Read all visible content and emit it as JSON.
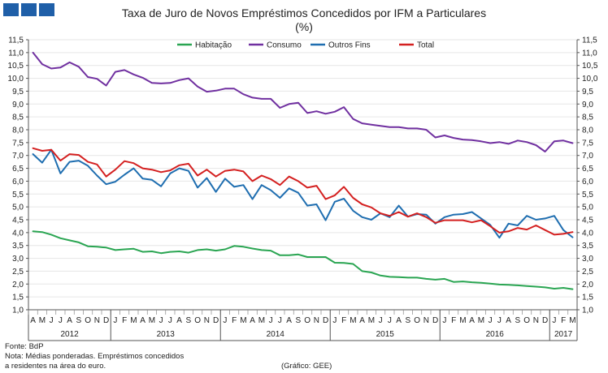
{
  "logo": {
    "color": "#1f5fa8"
  },
  "chart_data": {
    "type": "line",
    "title": "Taxa de Juro de Novos Empréstimos Concedidos por IFM a Particulares",
    "subtitle": "(%)",
    "xlabel": "",
    "ylabel": "",
    "ylim": [
      1.0,
      11.5
    ],
    "y_ticks": [
      "1,0",
      "1,5",
      "2,0",
      "2,5",
      "3,0",
      "3,5",
      "4,0",
      "4,5",
      "5,0",
      "5,5",
      "6,0",
      "6,5",
      "7,0",
      "7,5",
      "8,0",
      "8,5",
      "9,0",
      "9,5",
      "10,0",
      "10,5",
      "11,0",
      "11,5"
    ],
    "months": [
      "A",
      "M",
      "J",
      "J",
      "A",
      "S",
      "O",
      "N",
      "D",
      "J",
      "F",
      "M",
      "A",
      "M",
      "J",
      "J",
      "A",
      "S",
      "O",
      "N",
      "D",
      "J",
      "F",
      "M",
      "A",
      "M",
      "J",
      "J",
      "A",
      "S",
      "O",
      "N",
      "D",
      "J",
      "F",
      "M",
      "A",
      "M",
      "J",
      "J",
      "A",
      "S",
      "O",
      "N",
      "D",
      "J",
      "F",
      "M",
      "A",
      "M",
      "J",
      "J",
      "A",
      "S",
      "O",
      "N",
      "D",
      "J",
      "F",
      "M"
    ],
    "years": [
      {
        "label": "2012",
        "start": 0,
        "end": 9
      },
      {
        "label": "2013",
        "start": 9,
        "end": 21
      },
      {
        "label": "2014",
        "start": 21,
        "end": 33
      },
      {
        "label": "2015",
        "start": 33,
        "end": 45
      },
      {
        "label": "2016",
        "start": 45,
        "end": 57
      },
      {
        "label": "2017",
        "start": 57,
        "end": 60
      }
    ],
    "legend_position": "top",
    "series": [
      {
        "name": "Habitação",
        "color": "#2aa552",
        "values": [
          4.05,
          4.02,
          3.92,
          3.78,
          3.7,
          3.62,
          3.47,
          3.45,
          3.42,
          3.32,
          3.35,
          3.37,
          3.25,
          3.27,
          3.2,
          3.25,
          3.27,
          3.22,
          3.32,
          3.35,
          3.3,
          3.35,
          3.48,
          3.45,
          3.38,
          3.32,
          3.3,
          3.12,
          3.12,
          3.15,
          3.05,
          3.05,
          3.05,
          2.83,
          2.82,
          2.78,
          2.5,
          2.45,
          2.33,
          2.28,
          2.27,
          2.25,
          2.25,
          2.2,
          2.17,
          2.2,
          2.08,
          2.1,
          2.07,
          2.05,
          2.02,
          1.98,
          1.97,
          1.95,
          1.92,
          1.9,
          1.87,
          1.82,
          1.85,
          1.8
        ]
      },
      {
        "name": "Consumo",
        "color": "#7030a0",
        "values": [
          11.0,
          10.55,
          10.38,
          10.42,
          10.62,
          10.45,
          10.05,
          9.98,
          9.72,
          10.25,
          10.32,
          10.15,
          10.02,
          9.82,
          9.8,
          9.82,
          9.93,
          10.0,
          9.68,
          9.48,
          9.52,
          9.6,
          9.6,
          9.38,
          9.25,
          9.2,
          9.2,
          8.85,
          9.0,
          9.05,
          8.65,
          8.72,
          8.62,
          8.7,
          8.88,
          8.42,
          8.25,
          8.2,
          8.15,
          8.1,
          8.1,
          8.05,
          8.05,
          8.0,
          7.7,
          7.78,
          7.68,
          7.62,
          7.6,
          7.55,
          7.48,
          7.52,
          7.45,
          7.58,
          7.52,
          7.4,
          7.15,
          7.55,
          7.58,
          7.48
        ]
      },
      {
        "name": "Outros Fins",
        "color": "#1f6eb0",
        "values": [
          7.05,
          6.72,
          7.22,
          6.3,
          6.75,
          6.8,
          6.6,
          6.22,
          5.88,
          5.98,
          6.25,
          6.5,
          6.1,
          6.05,
          5.8,
          6.3,
          6.5,
          6.4,
          5.75,
          6.12,
          5.58,
          6.1,
          5.78,
          5.85,
          5.3,
          5.85,
          5.65,
          5.35,
          5.72,
          5.55,
          5.05,
          5.1,
          4.48,
          5.2,
          5.32,
          4.85,
          4.6,
          4.5,
          4.75,
          4.6,
          5.05,
          4.62,
          4.72,
          4.7,
          4.35,
          4.6,
          4.7,
          4.72,
          4.8,
          4.55,
          4.3,
          3.8,
          4.35,
          4.28,
          4.65,
          4.5,
          4.55,
          4.65,
          4.1,
          3.82
        ]
      },
      {
        "name": "Total",
        "color": "#d42020",
        "values": [
          7.28,
          7.18,
          7.22,
          6.8,
          7.05,
          7.02,
          6.75,
          6.65,
          6.18,
          6.45,
          6.78,
          6.7,
          6.5,
          6.45,
          6.35,
          6.42,
          6.62,
          6.68,
          6.22,
          6.45,
          6.18,
          6.4,
          6.45,
          6.38,
          6.0,
          6.22,
          6.08,
          5.85,
          6.18,
          6.0,
          5.75,
          5.82,
          5.3,
          5.45,
          5.78,
          5.35,
          5.1,
          4.98,
          4.75,
          4.65,
          4.8,
          4.62,
          4.75,
          4.6,
          4.38,
          4.48,
          4.48,
          4.48,
          4.4,
          4.48,
          4.25,
          4.0,
          4.05,
          4.18,
          4.12,
          4.28,
          4.1,
          3.92,
          3.95,
          4.02
        ]
      }
    ]
  },
  "footer": {
    "lines": [
      "Fonte: BdP",
      "Nota: Médias ponderadas. Empréstimos concedidos",
      "a residentes na área do euro."
    ],
    "credit": "(Gráfico: GEE)"
  }
}
